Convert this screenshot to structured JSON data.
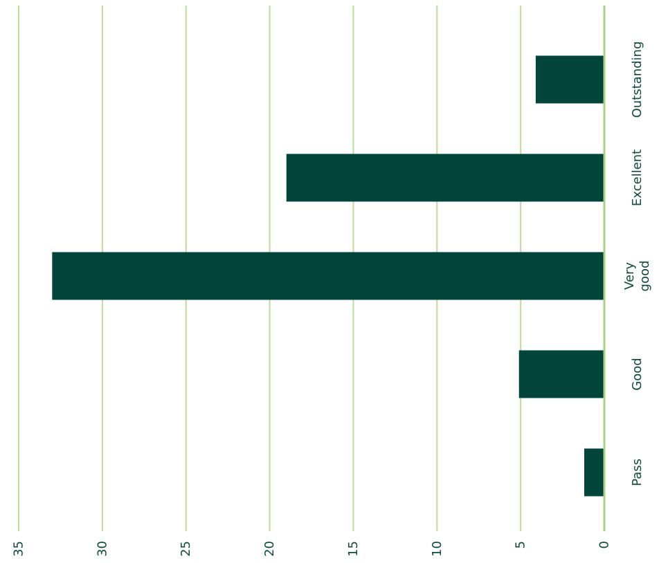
{
  "chart_data": {
    "type": "bar",
    "orientation": "horizontal",
    "categories": [
      "Outstanding",
      "Excellent",
      "Very good",
      "Good",
      "Pass"
    ],
    "category_lines": [
      [
        "Outstanding"
      ],
      [
        "Excellent"
      ],
      [
        "Very",
        "good"
      ],
      [
        "Good"
      ],
      [
        "Pass"
      ]
    ],
    "values": [
      4.1,
      19,
      33,
      5.1,
      1.2
    ],
    "xlim": [
      0,
      35
    ],
    "x_ticks": [
      0,
      5,
      10,
      15,
      20,
      25,
      30,
      35
    ],
    "x_direction": "reversed",
    "grid": true,
    "bar_color": "#03443b",
    "grid_color": "#bddb9c",
    "axis_color": "#a8d18a",
    "label_color": "#0f4a3a",
    "title": "",
    "xlabel": "",
    "ylabel": ""
  }
}
